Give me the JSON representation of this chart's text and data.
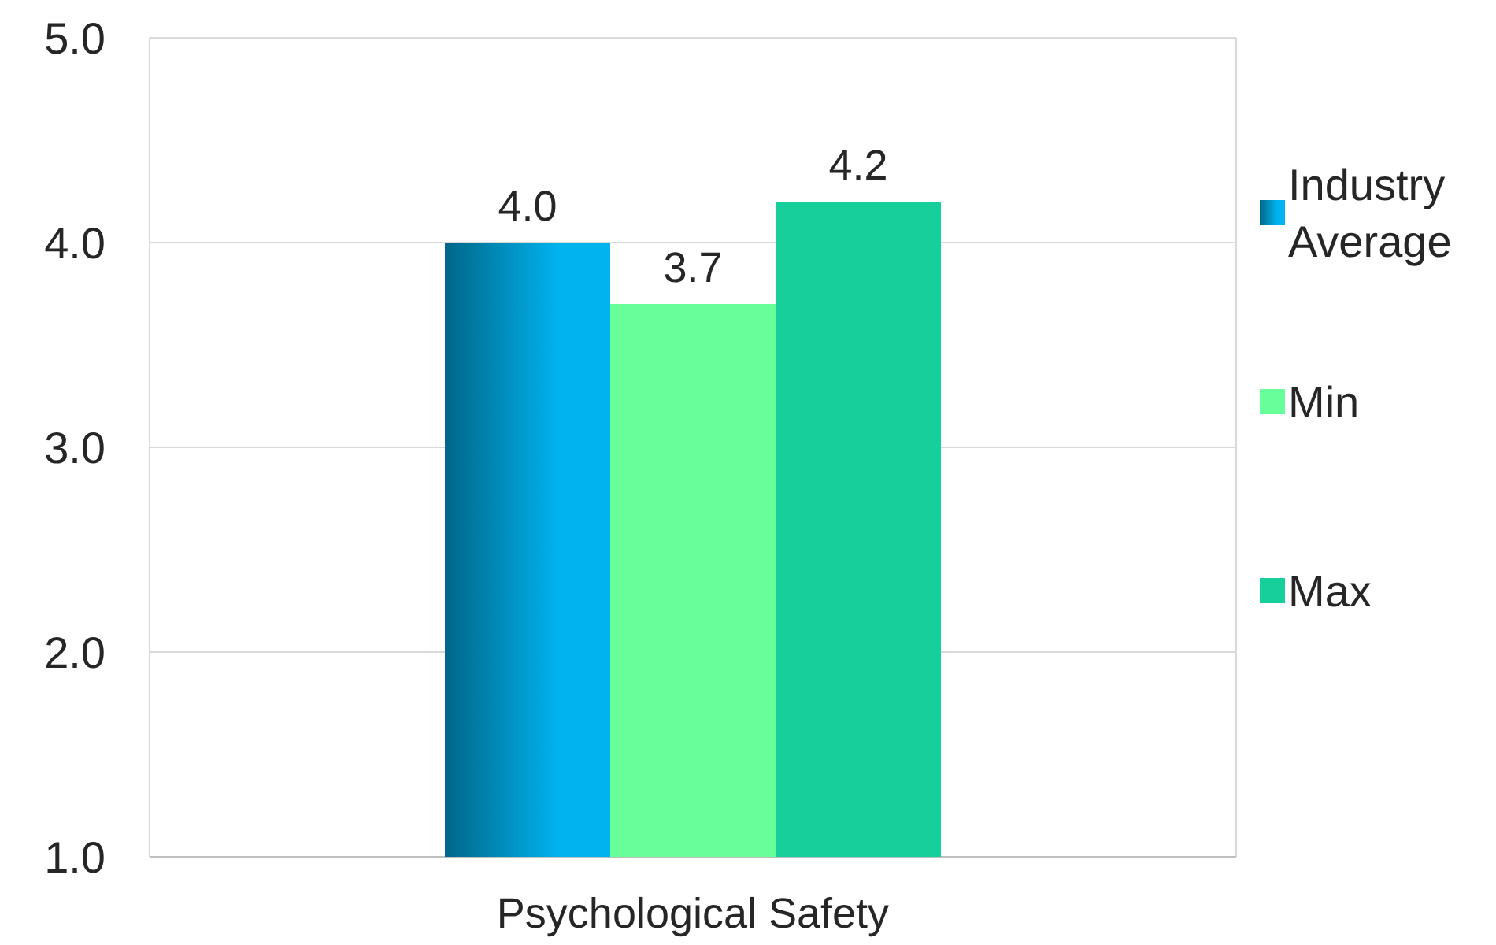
{
  "chart_data": {
    "type": "bar",
    "categories": [
      "Psychological Safety"
    ],
    "series": [
      {
        "name": "Industry Average",
        "color": "#00b4f0",
        "values": [
          4.0
        ],
        "value_labels": [
          "4.0"
        ]
      },
      {
        "name": "Min",
        "color": "#66ff99",
        "values": [
          3.7
        ],
        "value_labels": [
          "3.7"
        ]
      },
      {
        "name": "Max",
        "color": "#17cf9a",
        "values": [
          4.2
        ],
        "value_labels": [
          "4.2"
        ]
      }
    ],
    "ylim": [
      1,
      5
    ],
    "yticks": [
      {
        "value": 1,
        "label": "1.0"
      },
      {
        "value": 2,
        "label": "2.0"
      },
      {
        "value": 3,
        "label": "3.0"
      },
      {
        "value": 4,
        "label": "4.0"
      },
      {
        "value": 5,
        "label": "5.0"
      }
    ],
    "grid": "y",
    "legend": "right"
  }
}
